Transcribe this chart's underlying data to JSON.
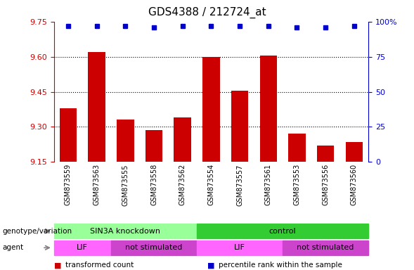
{
  "title": "GDS4388 / 212724_at",
  "samples": [
    "GSM873559",
    "GSM873563",
    "GSM873555",
    "GSM873558",
    "GSM873562",
    "GSM873554",
    "GSM873557",
    "GSM873561",
    "GSM873553",
    "GSM873556",
    "GSM873560"
  ],
  "bar_values": [
    9.38,
    9.62,
    9.33,
    9.285,
    9.34,
    9.6,
    9.455,
    9.605,
    9.27,
    9.22,
    9.235
  ],
  "percentile_values": [
    97,
    97,
    97,
    96,
    97,
    97,
    97,
    97,
    96,
    96,
    97
  ],
  "ylim_left": [
    9.15,
    9.75
  ],
  "ylim_right": [
    0,
    100
  ],
  "yticks_left": [
    9.15,
    9.3,
    9.45,
    9.6,
    9.75
  ],
  "yticks_right": [
    0,
    25,
    50,
    75,
    100
  ],
  "bar_color": "#cc0000",
  "dot_color": "#0000cc",
  "bar_width": 0.6,
  "grid_color": "#000000",
  "genotype_groups": [
    {
      "label": "SIN3A knockdown",
      "start": 0,
      "end": 5,
      "color": "#99ff99"
    },
    {
      "label": "control",
      "start": 5,
      "end": 11,
      "color": "#33cc33"
    }
  ],
  "agent_groups": [
    {
      "label": "LIF",
      "start": 0,
      "end": 2,
      "color": "#ff66ff"
    },
    {
      "label": "not stimulated",
      "start": 2,
      "end": 5,
      "color": "#cc44cc"
    },
    {
      "label": "LIF",
      "start": 5,
      "end": 8,
      "color": "#ff66ff"
    },
    {
      "label": "not stimulated",
      "start": 8,
      "end": 11,
      "color": "#cc44cc"
    }
  ],
  "legend_items": [
    {
      "label": "transformed count",
      "color": "#cc0000"
    },
    {
      "label": "percentile rank within the sample",
      "color": "#0000cc"
    }
  ],
  "left_axis_color": "#cc0000",
  "right_axis_color": "#0000cc"
}
